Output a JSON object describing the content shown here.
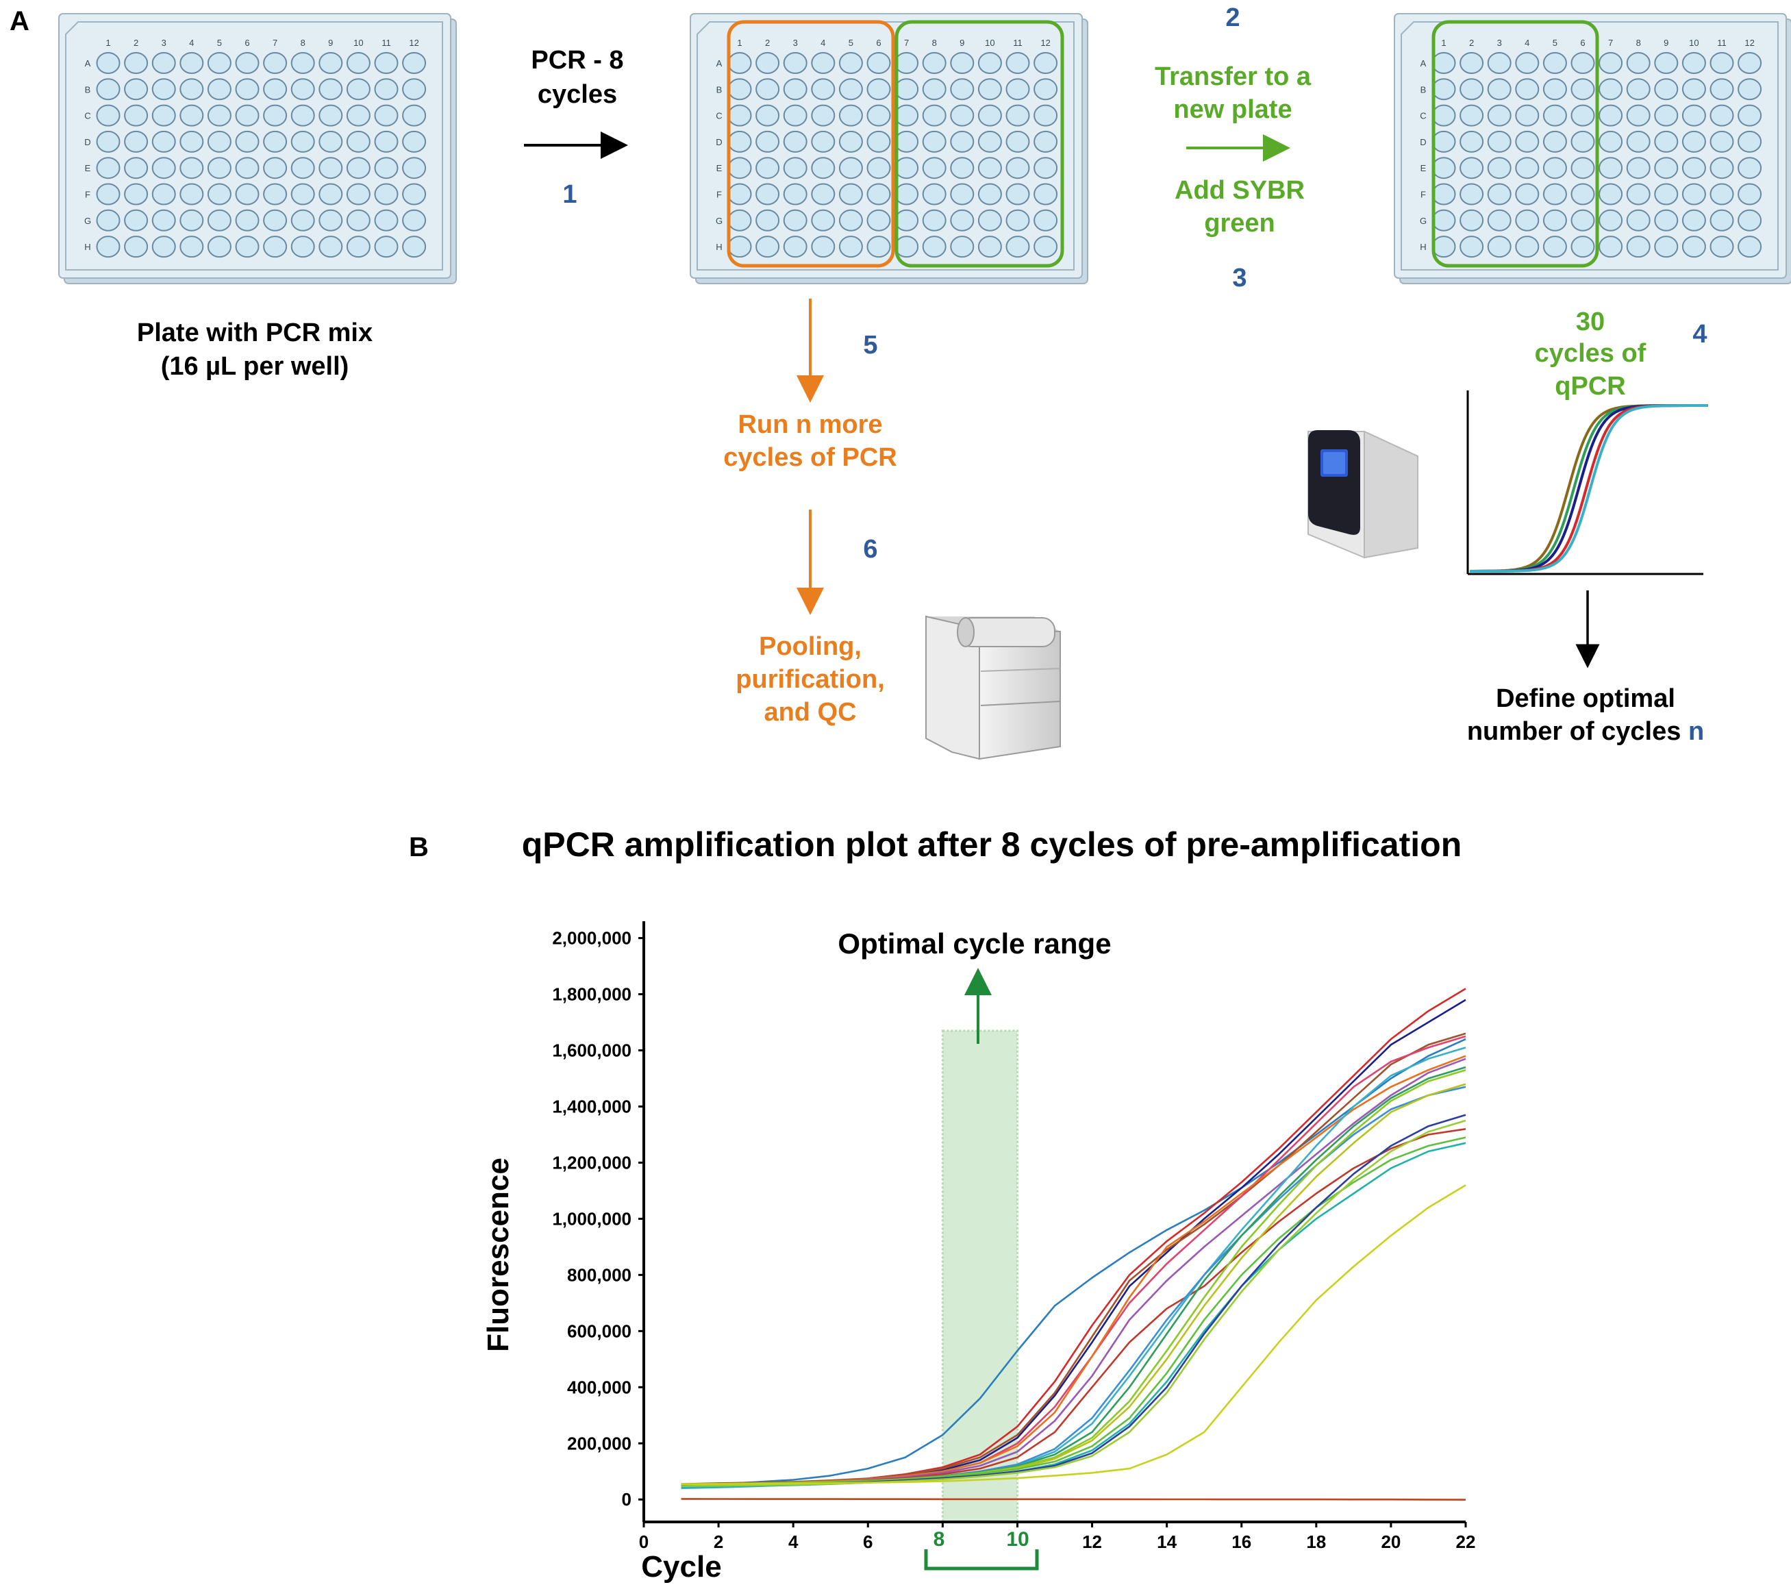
{
  "panel_a": {
    "label": "A",
    "plate_columns": [
      "1",
      "2",
      "3",
      "4",
      "5",
      "6",
      "7",
      "8",
      "9",
      "10",
      "11",
      "12"
    ],
    "plate_rows": [
      "A",
      "B",
      "C",
      "D",
      "E",
      "F",
      "G",
      "H"
    ],
    "plate1_caption": [
      "Plate with PCR mix",
      "(16 µL per well)"
    ],
    "step1": {
      "text": [
        "PCR - 8",
        "cycles"
      ],
      "number": "1"
    },
    "step2": {
      "number": "2",
      "text": [
        "Transfer to a",
        "new plate"
      ]
    },
    "step3": {
      "number": "3",
      "text": [
        "Add SYBR",
        "green"
      ]
    },
    "step4": {
      "number": "4",
      "text": [
        "30",
        "cycles of",
        "qPCR"
      ]
    },
    "step5": {
      "number": "5",
      "text": [
        "Run n more",
        "cycles of PCR"
      ]
    },
    "step6": {
      "number": "6",
      "text": [
        "Pooling,",
        "purification,",
        "and QC"
      ]
    },
    "define": {
      "line1": "Define optimal",
      "line2_prefix": "number of cycles ",
      "line2_var": "n"
    }
  },
  "panel_b": {
    "label": "B",
    "title": "qPCR amplification plot after 8 cycles of pre-amplification",
    "annotation": "Optimal cycle range",
    "bracket_labels": [
      "8",
      "10"
    ]
  },
  "colors": {
    "blue": "#2f5b9a",
    "green": "#5aaa2a",
    "orange": "#e87e1e",
    "black": "#000000",
    "well_fill": "#cfe6f3",
    "plate_fill": "#e3eef4",
    "shade": "#cfe8cc",
    "bracket_green": "#1e8a3a"
  },
  "chart_data": {
    "type": "line",
    "title": "qPCR amplification plot after 8 cycles of pre-amplification",
    "xlabel": "Cycle",
    "ylabel": "Fluorescence",
    "xlim": [
      0,
      22
    ],
    "ylim": [
      -80000,
      2060000
    ],
    "xticks": [
      0,
      2,
      4,
      6,
      8,
      10,
      12,
      14,
      16,
      18,
      20,
      22
    ],
    "yticks": [
      0,
      200000,
      400000,
      600000,
      800000,
      1000000,
      1200000,
      1400000,
      1600000,
      1800000,
      2000000
    ],
    "ytick_labels": [
      "0",
      "200,000",
      "400,000",
      "600,000",
      "800,000",
      "1,000,000",
      "1,200,000",
      "1,400,000",
      "1,600,000",
      "1,800,000",
      "2,000,000"
    ],
    "highlight_range": [
      8,
      10
    ],
    "highlight_top": 1670000,
    "grid": false,
    "x": [
      1,
      2,
      3,
      4,
      5,
      6,
      7,
      8,
      9,
      10,
      11,
      12,
      13,
      14,
      15,
      16,
      17,
      18,
      19,
      20,
      21,
      22
    ],
    "series": [
      {
        "name": "s1",
        "color": "#2a7ec0",
        "values": [
          50000,
          55000,
          62000,
          70000,
          85000,
          110000,
          150000,
          230000,
          360000,
          530000,
          690000,
          790000,
          880000,
          960000,
          1030000,
          1110000,
          1200000,
          1300000,
          1400000,
          1500000,
          1580000,
          1640000
        ]
      },
      {
        "name": "s2",
        "color": "#d62a2a",
        "values": [
          45000,
          48000,
          52000,
          58000,
          65000,
          75000,
          90000,
          115000,
          160000,
          260000,
          420000,
          620000,
          800000,
          920000,
          1020000,
          1130000,
          1250000,
          1380000,
          1510000,
          1640000,
          1740000,
          1820000
        ]
      },
      {
        "name": "s3",
        "color": "#1a1f8a",
        "values": [
          45000,
          48000,
          52000,
          57000,
          63000,
          72000,
          85000,
          105000,
          140000,
          220000,
          370000,
          560000,
          760000,
          880000,
          1000000,
          1110000,
          1230000,
          1360000,
          1490000,
          1620000,
          1700000,
          1780000
        ]
      },
      {
        "name": "s4",
        "color": "#a0522d",
        "values": [
          55000,
          58000,
          60000,
          63000,
          68000,
          75000,
          88000,
          110000,
          150000,
          230000,
          380000,
          580000,
          780000,
          890000,
          980000,
          1080000,
          1190000,
          1310000,
          1430000,
          1550000,
          1620000,
          1660000
        ]
      },
      {
        "name": "s5",
        "color": "#e0446e",
        "values": [
          50000,
          52000,
          55000,
          59000,
          64000,
          72000,
          84000,
          100000,
          130000,
          200000,
          330000,
          510000,
          700000,
          840000,
          960000,
          1080000,
          1210000,
          1340000,
          1470000,
          1560000,
          1610000,
          1650000
        ]
      },
      {
        "name": "s6",
        "color": "#e8701e",
        "values": [
          52000,
          54000,
          56000,
          60000,
          65000,
          72000,
          83000,
          100000,
          130000,
          190000,
          310000,
          510000,
          720000,
          900000,
          990000,
          1090000,
          1190000,
          1290000,
          1390000,
          1470000,
          1530000,
          1580000
        ]
      },
      {
        "name": "s7",
        "color": "#9b59b6",
        "values": [
          48000,
          50000,
          53000,
          57000,
          62000,
          70000,
          80000,
          95000,
          120000,
          170000,
          280000,
          440000,
          640000,
          780000,
          900000,
          1010000,
          1120000,
          1230000,
          1340000,
          1440000,
          1520000,
          1570000
        ]
      },
      {
        "name": "s8",
        "color": "#c0392b",
        "values": [
          50000,
          52000,
          55000,
          58000,
          62000,
          68000,
          76000,
          90000,
          110000,
          150000,
          240000,
          400000,
          560000,
          680000,
          760000,
          880000,
          990000,
          1090000,
          1180000,
          1250000,
          1300000,
          1320000
        ]
      },
      {
        "name": "s9",
        "color": "#3ab0c8",
        "values": [
          40000,
          43000,
          47000,
          52000,
          57000,
          63000,
          71000,
          82000,
          98000,
          120000,
          170000,
          270000,
          440000,
          620000,
          800000,
          960000,
          1110000,
          1260000,
          1400000,
          1510000,
          1570000,
          1610000
        ]
      },
      {
        "name": "s10",
        "color": "#3a8fd8",
        "values": [
          45000,
          47000,
          50000,
          54000,
          59000,
          65000,
          73000,
          84000,
          100000,
          125000,
          180000,
          290000,
          460000,
          640000,
          800000,
          940000,
          1070000,
          1190000,
          1300000,
          1390000,
          1440000,
          1470000
        ]
      },
      {
        "name": "s11",
        "color": "#2e9e5b",
        "values": [
          50000,
          52000,
          54000,
          57000,
          61000,
          66000,
          73000,
          83000,
          97000,
          118000,
          160000,
          240000,
          400000,
          590000,
          780000,
          940000,
          1080000,
          1210000,
          1330000,
          1430000,
          1500000,
          1540000
        ]
      },
      {
        "name": "s12",
        "color": "#8ac926",
        "values": [
          55000,
          56000,
          58000,
          60000,
          63000,
          67000,
          73000,
          82000,
          95000,
          115000,
          150000,
          220000,
          350000,
          530000,
          720000,
          900000,
          1050000,
          1190000,
          1310000,
          1420000,
          1490000,
          1530000
        ]
      },
      {
        "name": "s13",
        "color": "#b8c21e",
        "values": [
          48000,
          50000,
          52000,
          55000,
          59000,
          64000,
          70000,
          79000,
          92000,
          110000,
          145000,
          210000,
          330000,
          500000,
          690000,
          860000,
          1010000,
          1150000,
          1270000,
          1380000,
          1440000,
          1480000
        ]
      },
      {
        "name": "s14",
        "color": "#5fbf3f",
        "values": [
          50000,
          51000,
          53000,
          56000,
          60000,
          65000,
          71000,
          80000,
          92000,
          108000,
          135000,
          190000,
          290000,
          450000,
          640000,
          800000,
          930000,
          1040000,
          1130000,
          1210000,
          1260000,
          1290000
        ]
      },
      {
        "name": "s15",
        "color": "#20b2aa",
        "values": [
          45000,
          46000,
          48000,
          51000,
          55000,
          60000,
          66000,
          74000,
          85000,
          100000,
          125000,
          175000,
          270000,
          420000,
          600000,
          760000,
          890000,
          1000000,
          1090000,
          1180000,
          1240000,
          1270000
        ]
      },
      {
        "name": "s16",
        "color": "#2c3e9e",
        "values": [
          50000,
          51000,
          53000,
          55000,
          58000,
          62000,
          68000,
          76000,
          86000,
          100000,
          120000,
          165000,
          260000,
          400000,
          590000,
          760000,
          910000,
          1040000,
          1160000,
          1260000,
          1330000,
          1370000
        ]
      },
      {
        "name": "s17",
        "color": "#9acd32",
        "values": [
          48000,
          49000,
          51000,
          53000,
          56000,
          60000,
          65000,
          72000,
          82000,
          95000,
          115000,
          155000,
          240000,
          380000,
          570000,
          740000,
          890000,
          1020000,
          1140000,
          1240000,
          1310000,
          1350000
        ]
      },
      {
        "name": "s18",
        "color": "#c8d21e",
        "values": [
          55000,
          55000,
          56000,
          57000,
          58000,
          60000,
          62000,
          65000,
          70000,
          76000,
          85000,
          95000,
          110000,
          160000,
          240000,
          400000,
          560000,
          710000,
          830000,
          940000,
          1040000,
          1120000
        ]
      },
      {
        "name": "s19",
        "color": "#c0441a",
        "values": [
          2000,
          1800,
          1600,
          1500,
          1400,
          1300,
          1200,
          1100,
          1000,
          1000,
          900,
          800,
          700,
          600,
          500,
          400,
          300,
          200,
          100,
          0,
          -500,
          -1000
        ]
      }
    ]
  }
}
